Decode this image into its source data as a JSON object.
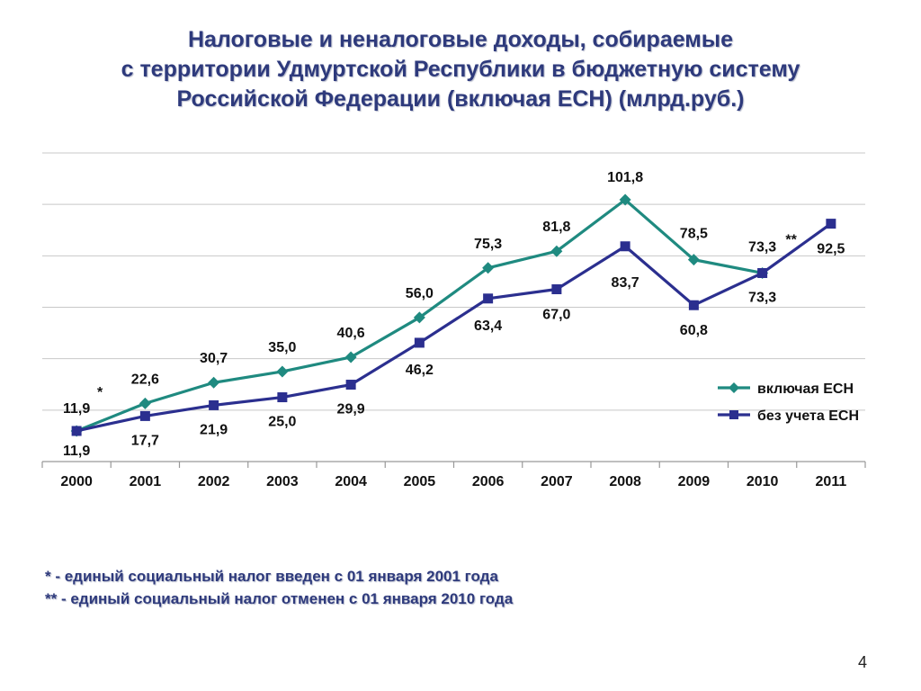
{
  "title_lines": [
    "Налоговые и неналоговые доходы, собираемые",
    "с территории Удмуртской Республики в бюджетную систему",
    "Российской Федерации (включая ЕСН) (млрд.руб.)"
  ],
  "chart_data": {
    "type": "line",
    "title": "Налоговые и неналоговые доходы, собираемые с территории Удмуртской Республики в бюджетную систему Российской Федерации (включая ЕСН) (млрд.руб.)",
    "categories": [
      "2000",
      "2001",
      "2002",
      "2003",
      "2004",
      "2005",
      "2006",
      "2007",
      "2008",
      "2009",
      "2010",
      "2011"
    ],
    "series": [
      {
        "name": "включая ЕСН",
        "color": "#1f8a80",
        "marker": "diamond",
        "values": [
          11.9,
          22.6,
          30.7,
          35.0,
          40.6,
          56.0,
          75.3,
          81.8,
          101.8,
          78.5,
          73.3,
          null
        ],
        "labels": [
          "11,9",
          "22,6",
          "30,7",
          "35,0",
          "40,6",
          "56,0",
          "75,3",
          "81,8",
          "101,8",
          "78,5",
          "73,3",
          ""
        ]
      },
      {
        "name": "без учета ЕСН",
        "color": "#2b2f8f",
        "marker": "square",
        "values": [
          11.9,
          17.7,
          21.9,
          25.0,
          29.9,
          46.2,
          63.4,
          67.0,
          83.7,
          60.8,
          73.3,
          92.5
        ],
        "labels": [
          "11,9",
          "17,7",
          "21,9",
          "25,0",
          "29,9",
          "46,2",
          "63,4",
          "67,0",
          "83,7",
          "60,8",
          "73,3",
          "92,5"
        ]
      }
    ],
    "annotations": [
      {
        "text": "*",
        "category": "2000"
      },
      {
        "text": "**",
        "category": "2010"
      }
    ],
    "ylim": [
      0,
      120
    ],
    "y_gridlines": [
      0,
      20,
      40,
      60,
      80,
      100,
      120
    ],
    "grid": true,
    "legend_position": "right",
    "xlabel": "",
    "ylabel": ""
  },
  "footnotes": [
    "*  - единый социальный налог введен с 01 января 2001 года",
    "** - единый социальный налог отменен с 01 января 2010 года"
  ],
  "page_number": "4"
}
